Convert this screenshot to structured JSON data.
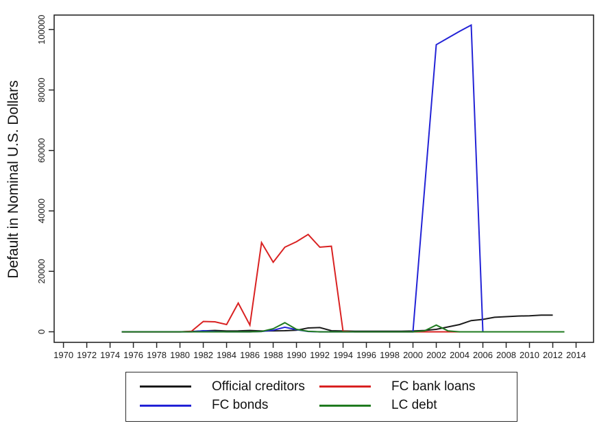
{
  "chart_data": {
    "type": "line",
    "title": "",
    "xlabel": "",
    "ylabel": "Default in Nominal U.S. Dollars",
    "x_ticks": [
      1970,
      1972,
      1974,
      1976,
      1978,
      1980,
      1982,
      1984,
      1986,
      1988,
      1990,
      1992,
      1994,
      1996,
      1998,
      2000,
      2002,
      2004,
      2006,
      2008,
      2010,
      2012,
      2014
    ],
    "y_ticks": [
      0,
      20000,
      40000,
      60000,
      80000,
      100000
    ],
    "xlim": [
      1969.2,
      2015.5
    ],
    "ylim": [
      -3500,
      104800
    ],
    "grid": false,
    "legend_position": "bottom",
    "axis_color": "#262626",
    "series": [
      {
        "name": "Official creditors",
        "color": "#1a1a1a",
        "points": [
          [
            1975,
            0
          ],
          [
            1976,
            0
          ],
          [
            1977,
            0
          ],
          [
            1978,
            0
          ],
          [
            1979,
            0
          ],
          [
            1980,
            0
          ],
          [
            1981,
            100
          ],
          [
            1982,
            300
          ],
          [
            1983,
            450
          ],
          [
            1984,
            250
          ],
          [
            1985,
            300
          ],
          [
            1986,
            450
          ],
          [
            1987,
            250
          ],
          [
            1988,
            300
          ],
          [
            1989,
            350
          ],
          [
            1990,
            500
          ],
          [
            1991,
            1250
          ],
          [
            1992,
            1400
          ],
          [
            1993,
            350
          ],
          [
            1994,
            250
          ],
          [
            1995,
            200
          ],
          [
            1996,
            200
          ],
          [
            1997,
            200
          ],
          [
            1998,
            200
          ],
          [
            1999,
            200
          ],
          [
            2000,
            250
          ],
          [
            2001,
            450
          ],
          [
            2002,
            800
          ],
          [
            2003,
            1600
          ],
          [
            2004,
            2400
          ],
          [
            2005,
            3700
          ],
          [
            2006,
            4100
          ],
          [
            2007,
            4800
          ],
          [
            2008,
            5000
          ],
          [
            2009,
            5200
          ],
          [
            2010,
            5300
          ],
          [
            2011,
            5500
          ],
          [
            2012,
            5500
          ]
        ]
      },
      {
        "name": "FC bank loans",
        "color": "#d92121",
        "points": [
          [
            1975,
            0
          ],
          [
            1976,
            0
          ],
          [
            1977,
            0
          ],
          [
            1978,
            0
          ],
          [
            1979,
            0
          ],
          [
            1980,
            0
          ],
          [
            1981,
            200
          ],
          [
            1982,
            3400
          ],
          [
            1983,
            3300
          ],
          [
            1984,
            2400
          ],
          [
            1985,
            9500
          ],
          [
            1986,
            2200
          ],
          [
            1987,
            29500
          ],
          [
            1988,
            23000
          ],
          [
            1989,
            28000
          ],
          [
            1990,
            29800
          ],
          [
            1991,
            32200
          ],
          [
            1992,
            28000
          ],
          [
            1993,
            28300
          ],
          [
            1994,
            200
          ],
          [
            1995,
            0
          ],
          [
            1996,
            0
          ],
          [
            1997,
            0
          ],
          [
            1998,
            0
          ],
          [
            1999,
            0
          ],
          [
            2000,
            0
          ],
          [
            2001,
            0
          ],
          [
            2002,
            0
          ],
          [
            2003,
            0
          ],
          [
            2004,
            0
          ]
        ]
      },
      {
        "name": "FC bonds",
        "color": "#2222d6",
        "points": [
          [
            1975,
            0
          ],
          [
            1976,
            0
          ],
          [
            1977,
            0
          ],
          [
            1978,
            0
          ],
          [
            1979,
            0
          ],
          [
            1980,
            0
          ],
          [
            1981,
            0
          ],
          [
            1982,
            350
          ],
          [
            1983,
            100
          ],
          [
            1984,
            0
          ],
          [
            1985,
            0
          ],
          [
            1986,
            0
          ],
          [
            1987,
            100
          ],
          [
            1988,
            500
          ],
          [
            1989,
            1500
          ],
          [
            1990,
            700
          ],
          [
            1991,
            100
          ],
          [
            1992,
            0
          ],
          [
            1993,
            0
          ],
          [
            1994,
            0
          ],
          [
            1995,
            0
          ],
          [
            1996,
            0
          ],
          [
            1997,
            0
          ],
          [
            1998,
            0
          ],
          [
            1999,
            0
          ],
          [
            2000,
            0
          ],
          [
            2001,
            47500
          ],
          [
            2002,
            95000
          ],
          [
            2003,
            97200
          ],
          [
            2004,
            99400
          ],
          [
            2005,
            101500
          ],
          [
            2006,
            0
          ]
        ]
      },
      {
        "name": "LC debt",
        "color": "#1f7a1f",
        "points": [
          [
            1975,
            0
          ],
          [
            1976,
            0
          ],
          [
            1977,
            0
          ],
          [
            1978,
            0
          ],
          [
            1979,
            0
          ],
          [
            1980,
            0
          ],
          [
            1981,
            0
          ],
          [
            1982,
            0
          ],
          [
            1983,
            0
          ],
          [
            1984,
            0
          ],
          [
            1985,
            0
          ],
          [
            1986,
            0
          ],
          [
            1987,
            100
          ],
          [
            1988,
            1000
          ],
          [
            1989,
            3000
          ],
          [
            1990,
            800
          ],
          [
            1991,
            150
          ],
          [
            1992,
            0
          ],
          [
            1993,
            0
          ],
          [
            1994,
            0
          ],
          [
            1995,
            0
          ],
          [
            1996,
            0
          ],
          [
            1997,
            0
          ],
          [
            1998,
            0
          ],
          [
            1999,
            0
          ],
          [
            2000,
            0
          ],
          [
            2001,
            300
          ],
          [
            2002,
            2200
          ],
          [
            2003,
            300
          ],
          [
            2004,
            0
          ],
          [
            2005,
            0
          ],
          [
            2006,
            0
          ],
          [
            2007,
            0
          ],
          [
            2008,
            0
          ],
          [
            2009,
            0
          ],
          [
            2010,
            0
          ],
          [
            2011,
            0
          ],
          [
            2012,
            0
          ],
          [
            2013,
            0
          ]
        ]
      }
    ]
  }
}
